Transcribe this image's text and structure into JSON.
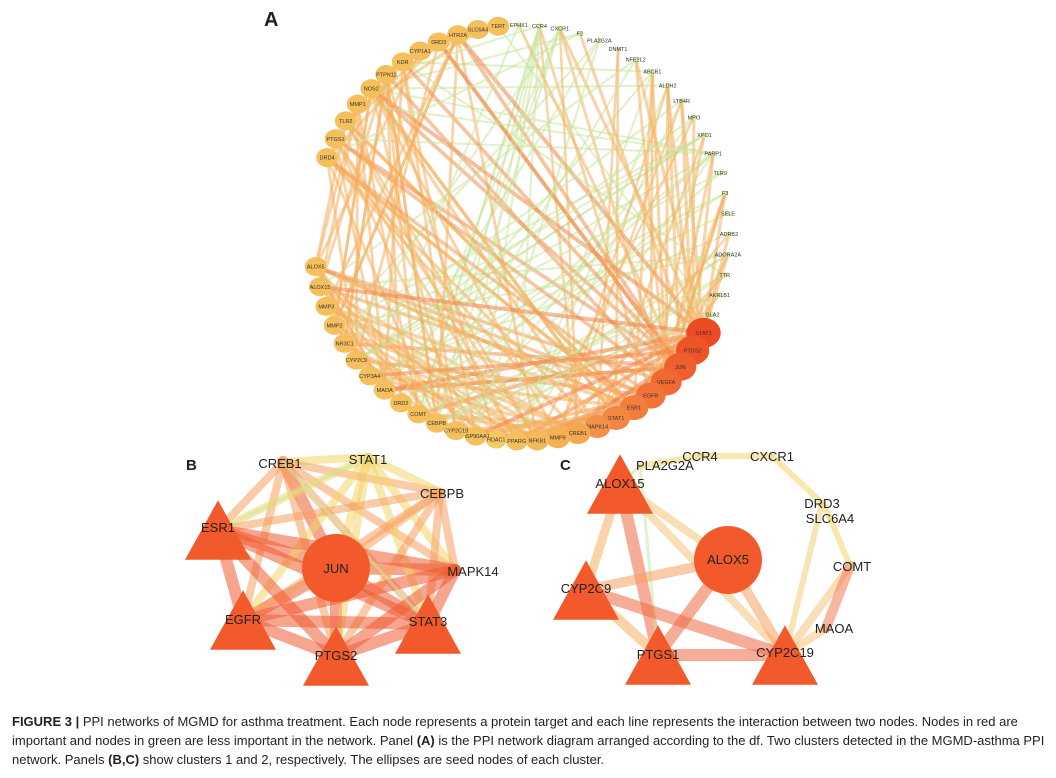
{
  "panels": {
    "a": {
      "label": "A",
      "nodes": [
        "DRD4",
        "PTGS1",
        "TLR2",
        "MMP1",
        "NOS2",
        "PTPN11",
        "KDR",
        "CYP1A1",
        "DRD3",
        "HTR2A",
        "SLC6A4",
        "TERT",
        "EPHX1",
        "CCR4",
        "CXCR1",
        "F2",
        "PLA2G2A",
        "DNMT1",
        "NFE2L2",
        "ABCB1",
        "ALDH2",
        "LTB4R",
        "MPO",
        "XPO1",
        "PARP1",
        "TLR9",
        "F3",
        "SELE",
        "ADRB2",
        "ADORA2A",
        "TTR",
        "AKR1B1",
        "GLA2",
        "STAT3",
        "PTGS2",
        "JUN",
        "VEGFA",
        "EGFR",
        "ESR1",
        "STAT1",
        "MAPK14",
        "CREB1",
        "MMP9",
        "NFKB1",
        "PPARG",
        "HDAC1",
        "HSP90AA1",
        "CYP2C19",
        "CEBPB",
        "COMT",
        "DRD2",
        "MAOA",
        "CYP3A4",
        "CYP2C9",
        "NR3C1",
        "MMP2",
        "MMP3",
        "ALOX15",
        "ALOX5"
      ]
    },
    "b": {
      "label": "B",
      "nodes": [
        {
          "id": "JUN",
          "shape": "ellipse",
          "color": "#f25a2c"
        },
        {
          "id": "CREB1",
          "shape": "triangle",
          "color": "#f59b4d"
        },
        {
          "id": "STAT1",
          "shape": "triangle",
          "color": "#f5c64a"
        },
        {
          "id": "CEBPB",
          "shape": "triangle",
          "color": "#f0d65a"
        },
        {
          "id": "ESR1",
          "shape": "triangle",
          "color": "#f25a2c"
        },
        {
          "id": "MAPK14",
          "shape": "triangle",
          "color": "#f5b34f"
        },
        {
          "id": "EGFR",
          "shape": "triangle",
          "color": "#f25a2c"
        },
        {
          "id": "STAT3",
          "shape": "triangle",
          "color": "#f25a2c"
        },
        {
          "id": "PTGS2",
          "shape": "triangle",
          "color": "#f25a2c"
        }
      ]
    },
    "c": {
      "label": "C",
      "nodes": [
        {
          "id": "ALOX5",
          "shape": "ellipse",
          "color": "#f25a2c"
        },
        {
          "id": "ALOX15",
          "shape": "triangle",
          "color": "#f25a2c"
        },
        {
          "id": "PLA2G2A",
          "shape": "triangle",
          "color": "#f5d86a"
        },
        {
          "id": "CCR4",
          "shape": "triangle",
          "color": "#f5d86a"
        },
        {
          "id": "CXCR1",
          "shape": "triangle",
          "color": "#f5d86a"
        },
        {
          "id": "DRD3",
          "shape": "triangle",
          "color": "#f5d86a"
        },
        {
          "id": "SLC6A4",
          "shape": "triangle",
          "color": "#f5d86a"
        },
        {
          "id": "COMT",
          "shape": "triangle",
          "color": "#f5d86a"
        },
        {
          "id": "CYP2C9",
          "shape": "triangle",
          "color": "#f25a2c"
        },
        {
          "id": "MAOA",
          "shape": "triangle",
          "color": "#f5d86a"
        },
        {
          "id": "PTGS1",
          "shape": "triangle",
          "color": "#f25a2c"
        },
        {
          "id": "CYP2C19",
          "shape": "triangle",
          "color": "#f25a2c"
        }
      ]
    }
  },
  "caption": {
    "figure_label": "FIGURE 3 |",
    "t1": " PPI networks of MGMD for asthma treatment. Each node represents a protein target and each line represents the interaction between two nodes. Nodes in red are important and nodes in green are less important in the network. Panel ",
    "pa": "(A)",
    "t2": " is the PPI network diagram arranged according to the df. Two clusters detected in the MGMD-asthma PPI network. Panels ",
    "pbc": "(B,C)",
    "t3": " show clusters 1 and 2, respectively. The ellipses are seed nodes of each cluster."
  }
}
